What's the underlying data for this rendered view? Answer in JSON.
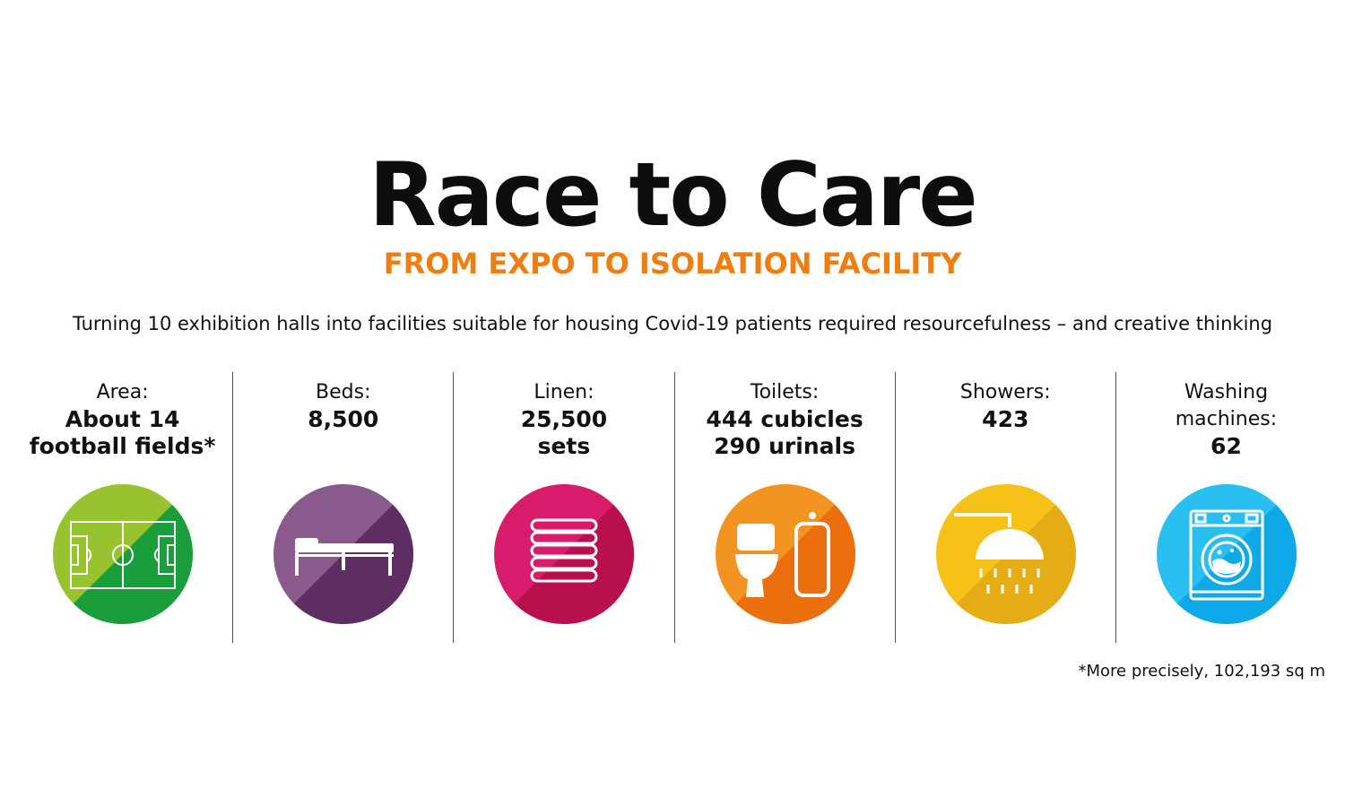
{
  "title": "Race to Care",
  "subtitle": "FROM EXPO TO ISOLATION FACILITY",
  "intro": "Turning 10 exhibition halls into facilities suitable for housing Covid-19 patients required resourcefulness – and creative thinking",
  "colors": {
    "subtitle": "#ef7d10",
    "area": "#7cc04a",
    "beds": "#6d3a74",
    "linen": "#d4145a",
    "toilets": "#f18a1a",
    "showers": "#f4b81c",
    "washing": "#1fb6ee"
  },
  "stats": [
    {
      "label": "Area:",
      "value": "About 14\nfootball fields*",
      "icon": "football-field-icon"
    },
    {
      "label": "Beds:",
      "value": "8,500",
      "icon": "bed-icon"
    },
    {
      "label": "Linen:",
      "value": "25,500\nsets",
      "icon": "linen-stack-icon"
    },
    {
      "label": "Toilets:",
      "value": "444 cubicles\n290 urinals",
      "icon": "toilet-urinal-icon"
    },
    {
      "label": "Showers:",
      "value": "423",
      "icon": "shower-icon"
    },
    {
      "label": "Washing\nmachines:",
      "value": "62",
      "icon": "washing-machine-icon"
    }
  ],
  "footnote": "*More precisely, 102,193 sq m"
}
